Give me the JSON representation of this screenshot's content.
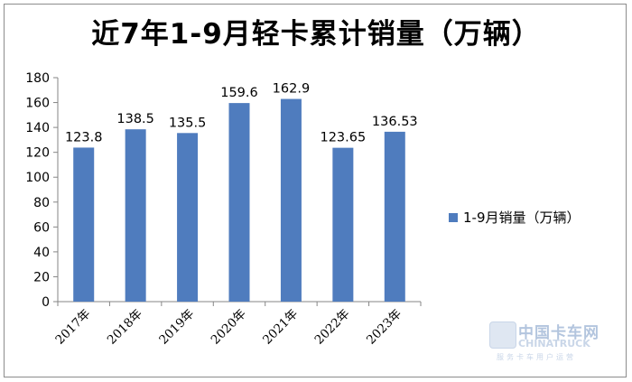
{
  "chart_data": {
    "type": "bar",
    "title": "近7年1-9月轻卡累计销量（万辆）",
    "categories": [
      "2017年",
      "2018年",
      "2019年",
      "2020年",
      "2021年",
      "2022年",
      "2023年"
    ],
    "series": [
      {
        "name": "1-9月销量（万辆）",
        "values": [
          123.8,
          138.5,
          135.5,
          159.6,
          162.9,
          123.65,
          136.53
        ],
        "labels": [
          "123.8",
          "138.5",
          "135.5",
          "159.6",
          "162.9",
          "123.65",
          "136.53"
        ],
        "color": "#4f7cbe"
      }
    ],
    "ylim": [
      0,
      180
    ],
    "yticks": [
      0,
      20,
      40,
      60,
      80,
      100,
      120,
      140,
      160,
      180
    ],
    "grid": false,
    "legend": "right"
  },
  "watermark": {
    "line1": "中国卡车网",
    "line2": "CHINATRUCK",
    "line3": "服务卡车用户运营"
  }
}
